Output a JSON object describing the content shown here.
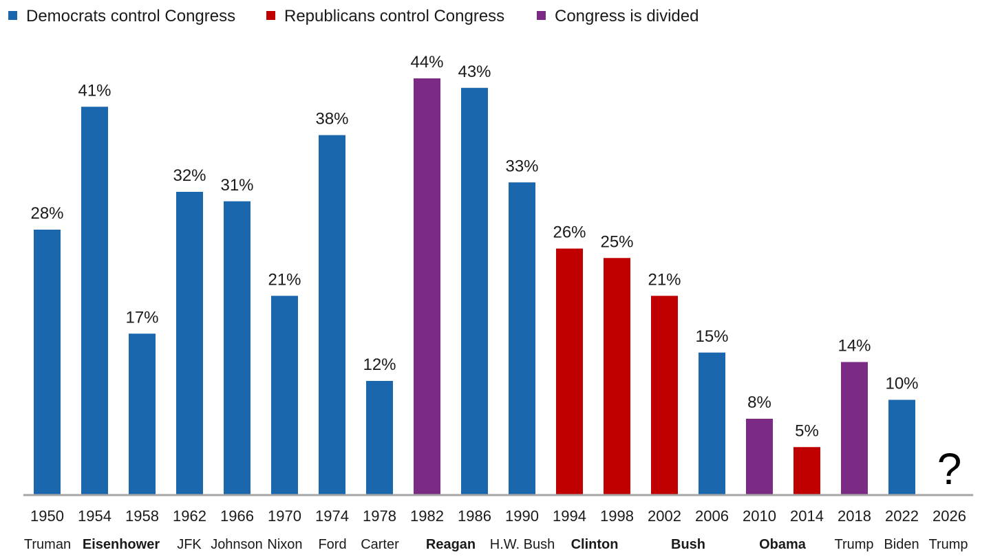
{
  "colors": {
    "dem": "#1a67ad",
    "rep": "#c00000",
    "div": "#7b2b83",
    "axis": "#a6a6a6"
  },
  "legend": [
    {
      "key": "dem",
      "label": "Democrats control Congress"
    },
    {
      "key": "rep",
      "label": "Republicans control Congress"
    },
    {
      "key": "div",
      "label": "Congress is divided"
    }
  ],
  "chart_data": {
    "type": "bar",
    "ylim": [
      0,
      44
    ],
    "categories": [
      "1950",
      "1954",
      "1958",
      "1962",
      "1966",
      "1970",
      "1974",
      "1978",
      "1982",
      "1986",
      "1990",
      "1994",
      "1998",
      "2002",
      "2006",
      "2010",
      "2014",
      "2018",
      "2022",
      "2026"
    ],
    "presidents": [
      {
        "name": "Truman",
        "bold": false
      },
      {
        "name": "Eisenhower",
        "bold": true
      },
      {
        "name": "JFK",
        "bold": false
      },
      {
        "name": "Johnson",
        "bold": false
      },
      {
        "name": "Nixon",
        "bold": false
      },
      {
        "name": "Ford",
        "bold": false
      },
      {
        "name": "Carter",
        "bold": false
      },
      {
        "name": "Reagan",
        "bold": true
      },
      {
        "name": "H.W. Bush",
        "bold": false
      },
      {
        "name": "Clinton",
        "bold": true
      },
      {
        "name": "Bush",
        "bold": true
      },
      {
        "name": "Obama",
        "bold": true
      },
      {
        "name": "Trump",
        "bold": false
      },
      {
        "name": "Biden",
        "bold": false
      },
      {
        "name": "Trump",
        "bold": false
      }
    ],
    "values": [
      28,
      41,
      17,
      32,
      31,
      21,
      38,
      12,
      44,
      43,
      33,
      26,
      25,
      21,
      15,
      8,
      5,
      14,
      10,
      null
    ],
    "value_labels": [
      "28%",
      "41%",
      "17%",
      "32%",
      "31%",
      "21%",
      "38%",
      "12%",
      "44%",
      "43%",
      "33%",
      "26%",
      "25%",
      "21%",
      "15%",
      "8%",
      "5%",
      "14%",
      "10%",
      "?"
    ],
    "control": [
      "dem",
      "dem",
      "dem",
      "dem",
      "dem",
      "dem",
      "dem",
      "dem",
      "div",
      "dem",
      "dem",
      "rep",
      "rep",
      "rep",
      "dem",
      "div",
      "rep",
      "div",
      "dem",
      null
    ]
  }
}
